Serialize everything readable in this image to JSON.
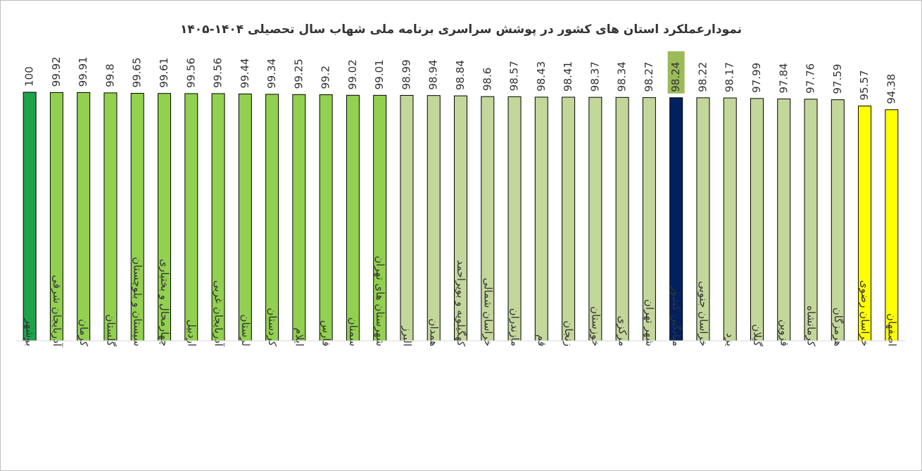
{
  "chart_data": {
    "type": "bar",
    "title": "نمودارعملکرد استان های کشور در پوشش سراسری برنامه ملی شهاب سال تحصیلی ۱۴۰۴-۱۴۰۵",
    "categories": [
      "بوشهر",
      "آذربایجان شرقی",
      "کرمان",
      "گلستان",
      "سیستان و بلوچستان",
      "چهارمحال و بختیاری",
      "اردبیل",
      "آذربایجان غربی",
      "لرستان",
      "کردستان",
      "ایلام",
      "فارس",
      "سمنان",
      "شهرستان های تهران",
      "البرز",
      "همدان",
      "کهگیلویه و بویراحمد",
      "خراسان شمالی",
      "مازندران",
      "قم",
      "زنجان",
      "خوزستان",
      "مرکزی",
      "شهر تهران",
      "میانگین کشور",
      "خراسان جنوبی",
      "یزد",
      "گیلان",
      "قزوین",
      "کرمانشاه",
      "هرمزگان",
      "خراسان رضوی",
      "اصفهان"
    ],
    "values": [
      100,
      99.92,
      99.91,
      99.8,
      99.65,
      99.61,
      99.56,
      99.56,
      99.44,
      99.34,
      99.25,
      99.2,
      99.02,
      99.01,
      98.99,
      98.94,
      98.84,
      98.6,
      98.57,
      98.43,
      98.41,
      98.37,
      98.34,
      98.27,
      98.24,
      98.22,
      98.17,
      97.99,
      97.84,
      97.76,
      97.59,
      95.57,
      94.38
    ],
    "colors": [
      "#1ea34a",
      "#92d050",
      "#92d050",
      "#92d050",
      "#92d050",
      "#92d050",
      "#92d050",
      "#92d050",
      "#92d050",
      "#92d050",
      "#92d050",
      "#92d050",
      "#92d050",
      "#92d050",
      "#c4d79b",
      "#c4d79b",
      "#c4d79b",
      "#c4d79b",
      "#c4d79b",
      "#c4d79b",
      "#c4d79b",
      "#c4d79b",
      "#c4d79b",
      "#c4d79b",
      "#002060",
      "#c4d79b",
      "#c4d79b",
      "#c4d79b",
      "#c4d79b",
      "#c4d79b",
      "#c4d79b",
      "#ffff00",
      "#ffff00"
    ],
    "ylim": [
      20,
      100
    ],
    "highlight_label_index": 24,
    "highlight_label_color": "#9bbb59"
  }
}
